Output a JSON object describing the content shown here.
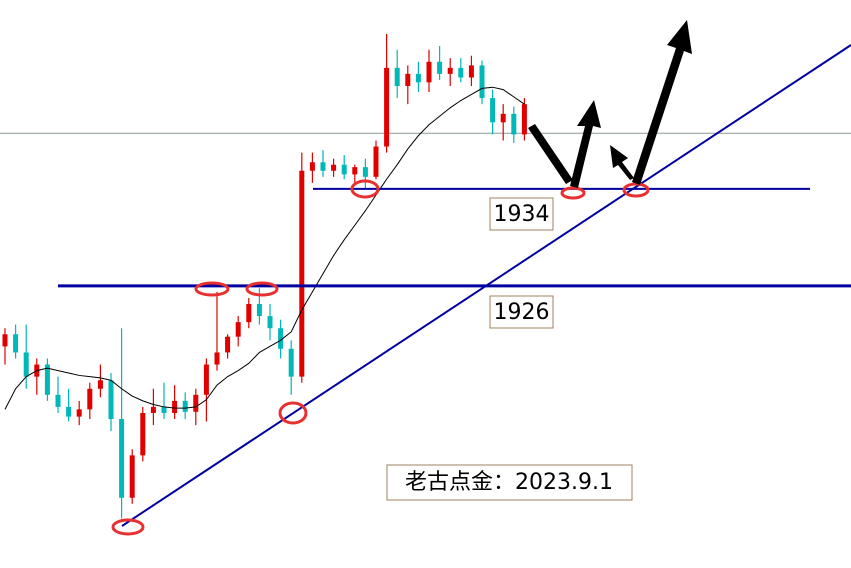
{
  "chart_data": {
    "type": "candlestick",
    "open": [
      1921.0,
      1922.0,
      1920.5,
      1918.5,
      1919.5,
      1917.0,
      1916.0,
      1915.2,
      1915.8,
      1917.5,
      1918.2,
      1915.0,
      1908.5,
      1912.0,
      1915.5,
      1916.0,
      1915.5,
      1916.5,
      1915.6,
      1917.0,
      1919.5,
      1920.5,
      1921.8,
      1923.0,
      1924.5,
      1923.5,
      1922.5,
      1920.8,
      1918.5,
      1935.5,
      1936.2,
      1935.5,
      1936.0,
      1935.2,
      1935.8,
      1935.0,
      1937.5,
      1944.0,
      1942.5,
      1943.5,
      1942.8,
      1944.5,
      1943.5,
      1944.0,
      1943.2,
      1944.2,
      1941.5,
      1939.5,
      1940.2,
      1938.5
    ],
    "high": [
      1922.5,
      1922.8,
      1922.8,
      1920.0,
      1920.0,
      1918.5,
      1917.5,
      1916.5,
      1918.0,
      1919.5,
      1918.8,
      1922.5,
      1912.5,
      1916.0,
      1917.5,
      1918.0,
      1917.8,
      1917.2,
      1917.5,
      1920.0,
      1925.5,
      1922.0,
      1923.5,
      1925.0,
      1925.8,
      1924.5,
      1923.2,
      1921.5,
      1937.0,
      1937.0,
      1937.2,
      1936.5,
      1936.8,
      1936.0,
      1936.5,
      1938.0,
      1946.8,
      1945.5,
      1944.2,
      1944.5,
      1945.5,
      1945.8,
      1944.8,
      1944.8,
      1945.0,
      1944.6,
      1942.2,
      1941.0,
      1940.8,
      1941.5
    ],
    "low": [
      1919.5,
      1920.0,
      1917.5,
      1917.0,
      1916.5,
      1915.5,
      1914.8,
      1914.5,
      1915.0,
      1916.8,
      1914.0,
      1906.8,
      1908.0,
      1911.5,
      1914.5,
      1915.0,
      1915.0,
      1915.0,
      1914.5,
      1914.8,
      1919.0,
      1920.0,
      1921.0,
      1922.5,
      1922.8,
      1921.5,
      1920.0,
      1917.0,
      1918.0,
      1934.5,
      1935.0,
      1935.0,
      1934.8,
      1934.5,
      1934.0,
      1934.8,
      1937.0,
      1941.5,
      1941.0,
      1942.0,
      1942.0,
      1943.0,
      1942.5,
      1942.8,
      1942.5,
      1941.0,
      1938.5,
      1938.0,
      1937.8,
      1938.0
    ],
    "close": [
      1922.0,
      1920.5,
      1918.5,
      1919.5,
      1917.0,
      1916.0,
      1915.2,
      1915.8,
      1917.5,
      1918.2,
      1915.0,
      1908.5,
      1912.0,
      1915.5,
      1916.0,
      1915.5,
      1916.5,
      1915.6,
      1917.0,
      1919.5,
      1920.5,
      1921.8,
      1923.0,
      1924.5,
      1923.5,
      1922.5,
      1920.8,
      1918.5,
      1935.5,
      1936.2,
      1935.5,
      1936.0,
      1935.2,
      1935.8,
      1935.0,
      1937.5,
      1944.0,
      1942.5,
      1943.5,
      1942.8,
      1944.5,
      1943.5,
      1944.0,
      1943.2,
      1944.2,
      1941.5,
      1939.5,
      1940.2,
      1938.5,
      1941.0
    ],
    "up_color": "#e00000",
    "down_color": "#00b8b8",
    "average": {
      "color": "#000000",
      "values": [
        1915.8,
        1917.5,
        1918.5,
        1919.0,
        1919.2,
        1919.0,
        1918.8,
        1918.6,
        1918.5,
        1918.4,
        1918.2,
        1917.5,
        1916.9,
        1916.5,
        1916.2,
        1916.0,
        1915.9,
        1915.9,
        1916.0,
        1916.6,
        1917.8,
        1918.5,
        1919.0,
        1919.6,
        1920.5,
        1921.0,
        1921.5,
        1922.2,
        1924.0,
        1925.5,
        1927.0,
        1928.5,
        1929.8,
        1931.0,
        1932.2,
        1933.5,
        1934.8,
        1936.0,
        1937.3,
        1938.4,
        1939.3,
        1940.0,
        1940.7,
        1941.3,
        1941.8,
        1942.3,
        1942.4,
        1942.2,
        1941.6,
        1941.0
      ]
    },
    "price_line": 1938.6,
    "levels": [
      1934,
      1926
    ],
    "level_color": "#0000a0",
    "annotation": "老古点金：2023.9.1",
    "ylim": [
      1902.7,
      1949.6
    ]
  }
}
